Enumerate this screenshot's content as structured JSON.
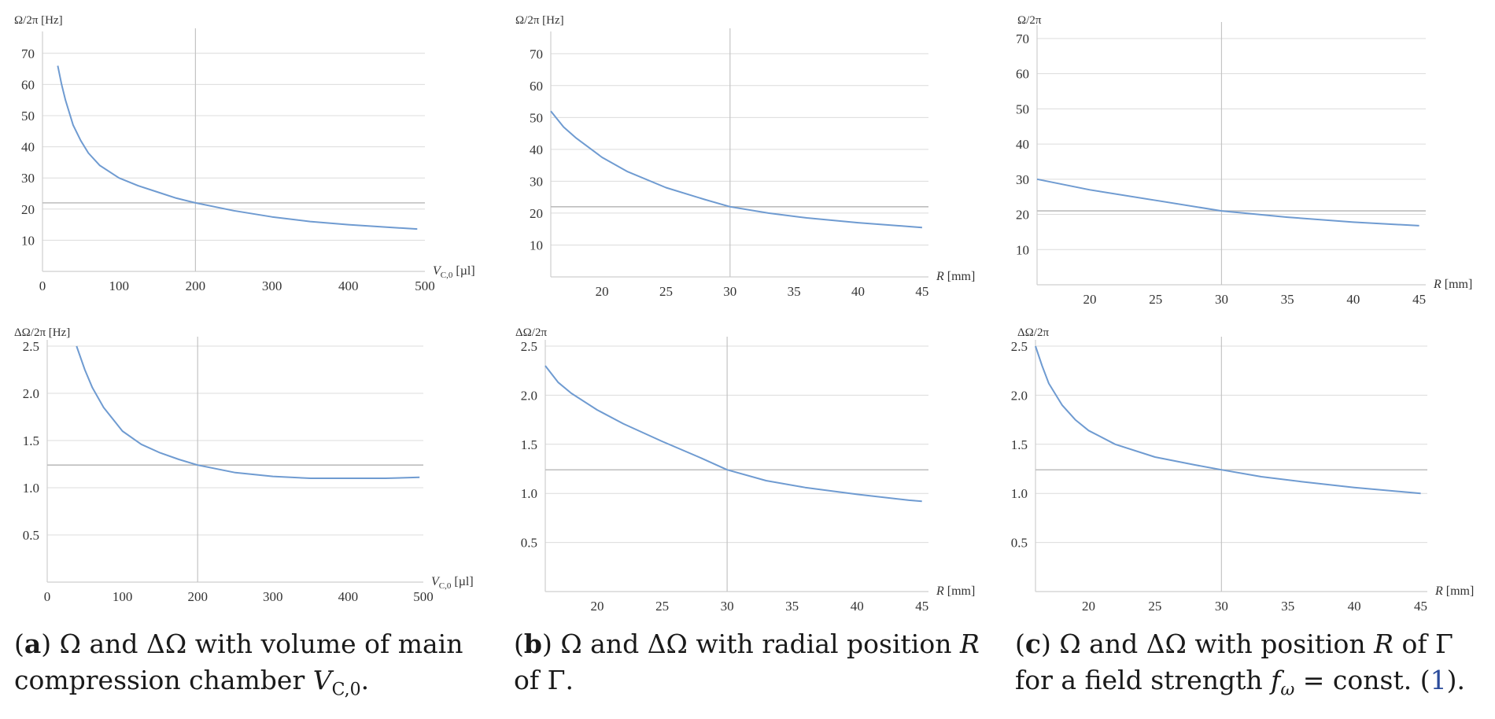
{
  "figure": {
    "captions": [
      {
        "label": "a",
        "text": "Ω and ΔΩ with volume of main compression chamber Vᴄ,₀.",
        "html_parts": {
          "p1": ") Ω and ΔΩ with volume of main compression chamber ",
          "var": "V",
          "sub": "C,0",
          "end": "."
        }
      },
      {
        "label": "b",
        "html_parts": {
          "p1": ") Ω and ΔΩ with radial position ",
          "var": "R",
          "p2": " of Γ."
        }
      },
      {
        "label": "c",
        "html_parts": {
          "p1": ") Ω and ΔΩ with position ",
          "var": "R",
          "p2": " of Γ for a field strength ",
          "var2": "f",
          "sub2": "ω",
          "p3": " = const. (",
          "ref": "1",
          "p4": ")."
        }
      }
    ]
  },
  "chart_data": [
    {
      "id": "a-top",
      "type": "line",
      "ylabel": "Ω/2π [Hz]",
      "xlabel_var": "V",
      "xlabel_sub": "C,0",
      "xlabel_unit": " [µl]",
      "xlim": [
        0,
        500
      ],
      "ylim": [
        0,
        75
      ],
      "xticks": [
        0,
        100,
        200,
        300,
        400,
        500
      ],
      "yticks": [
        10,
        20,
        30,
        40,
        50,
        60,
        70
      ],
      "ref_x": 200,
      "ref_y": 22,
      "series": [
        {
          "name": "Ω/2π",
          "color": "#6f9bd1",
          "x": [
            20,
            25,
            30,
            40,
            50,
            60,
            75,
            100,
            125,
            150,
            175,
            200,
            250,
            300,
            350,
            400,
            450,
            490
          ],
          "y": [
            66,
            60,
            55,
            47,
            42,
            38,
            34,
            30,
            27.5,
            25.5,
            23.5,
            22,
            19.5,
            17.5,
            16,
            15,
            14.2,
            13.6
          ]
        }
      ]
    },
    {
      "id": "b-top",
      "type": "line",
      "ylabel": "Ω/2π [Hz]",
      "xlabel_var": "R",
      "xlabel_sub": "",
      "xlabel_unit": " [mm]",
      "xlim": [
        16,
        45.5
      ],
      "ylim": [
        0,
        75
      ],
      "xticks": [
        20,
        25,
        30,
        35,
        40,
        45
      ],
      "yticks": [
        10,
        20,
        30,
        40,
        50,
        60,
        70
      ],
      "ref_x": 30,
      "ref_y": 22,
      "series": [
        {
          "name": "Ω/2π",
          "color": "#6f9bd1",
          "x": [
            16,
            17,
            18,
            20,
            22,
            25,
            28,
            30,
            33,
            36,
            40,
            44,
            45
          ],
          "y": [
            52,
            47,
            43.5,
            37.5,
            33,
            28,
            24.3,
            22,
            20,
            18.5,
            17,
            15.8,
            15.5
          ]
        }
      ]
    },
    {
      "id": "c-top",
      "type": "line",
      "ylabel": "Ω/2π",
      "xlabel_var": "R",
      "xlabel_sub": "",
      "xlabel_unit": " [mm]",
      "xlim": [
        16,
        45.5
      ],
      "ylim": [
        0,
        72
      ],
      "xticks": [
        20,
        25,
        30,
        35,
        40,
        45
      ],
      "yticks": [
        10,
        20,
        30,
        40,
        50,
        60,
        70
      ],
      "ref_x": 30,
      "ref_y": 21,
      "series": [
        {
          "name": "Ω/2π",
          "color": "#6f9bd1",
          "x": [
            16,
            20,
            25,
            30,
            35,
            40,
            45
          ],
          "y": [
            30,
            27,
            24,
            21,
            19.2,
            17.8,
            16.8
          ]
        }
      ]
    },
    {
      "id": "a-bottom",
      "type": "line",
      "ylabel": "ΔΩ/2π [Hz]",
      "xlabel_var": "V",
      "xlabel_sub": "C,0",
      "xlabel_unit": " [µl]",
      "xlim": [
        0,
        500
      ],
      "ylim": [
        0,
        2.5
      ],
      "xticks": [
        0,
        100,
        200,
        300,
        400,
        500
      ],
      "yticks": [
        0.5,
        1.0,
        1.5,
        2.0,
        2.5
      ],
      "ytick_labels": [
        "0.5",
        "1.0",
        "1.5",
        "2.0",
        "2.5"
      ],
      "ref_x": 200,
      "ref_y": 1.24,
      "series": [
        {
          "name": "ΔΩ/2π",
          "color": "#6f9bd1",
          "x": [
            39,
            50,
            60,
            75,
            100,
            125,
            150,
            175,
            200,
            250,
            300,
            350,
            400,
            450,
            495
          ],
          "y": [
            2.5,
            2.25,
            2.06,
            1.85,
            1.6,
            1.46,
            1.37,
            1.3,
            1.24,
            1.16,
            1.12,
            1.1,
            1.1,
            1.1,
            1.11
          ]
        }
      ]
    },
    {
      "id": "b-bottom",
      "type": "line",
      "ylabel": "ΔΩ/2π",
      "xlabel_var": "R",
      "xlabel_sub": "",
      "xlabel_unit": " [mm]",
      "xlim": [
        16,
        45.5
      ],
      "ylim": [
        0,
        2.5
      ],
      "xticks": [
        20,
        25,
        30,
        35,
        40,
        45
      ],
      "yticks": [
        0.5,
        1.0,
        1.5,
        2.0,
        2.5
      ],
      "ytick_labels": [
        "0.5",
        "1.0",
        "1.5",
        "2.0",
        "2.5"
      ],
      "ref_x": 30,
      "ref_y": 1.24,
      "series": [
        {
          "name": "ΔΩ/2π",
          "color": "#6f9bd1",
          "x": [
            16,
            17,
            18,
            20,
            22,
            25,
            28,
            30,
            33,
            36,
            40,
            44,
            45
          ],
          "y": [
            2.3,
            2.13,
            2.02,
            1.85,
            1.71,
            1.53,
            1.36,
            1.24,
            1.13,
            1.06,
            0.99,
            0.93,
            0.92
          ]
        }
      ]
    },
    {
      "id": "c-bottom",
      "type": "line",
      "ylabel": "ΔΩ/2π",
      "xlabel_var": "R",
      "xlabel_sub": "",
      "xlabel_unit": " [mm]",
      "xlim": [
        16,
        45.5
      ],
      "ylim": [
        0,
        2.5
      ],
      "xticks": [
        20,
        25,
        30,
        35,
        40,
        45
      ],
      "yticks": [
        0.5,
        1.0,
        1.5,
        2.0,
        2.5
      ],
      "ytick_labels": [
        "0.5",
        "1.0",
        "1.5",
        "2.0",
        "2.5"
      ],
      "ref_x": 30,
      "ref_y": 1.24,
      "series": [
        {
          "name": "ΔΩ/2π",
          "color": "#6f9bd1",
          "x": [
            16,
            16.5,
            17,
            18,
            19,
            20,
            22,
            25,
            28,
            30,
            33,
            36,
            40,
            45
          ],
          "y": [
            2.5,
            2.3,
            2.12,
            1.9,
            1.75,
            1.64,
            1.5,
            1.37,
            1.29,
            1.24,
            1.17,
            1.12,
            1.06,
            1.0
          ]
        }
      ]
    }
  ]
}
